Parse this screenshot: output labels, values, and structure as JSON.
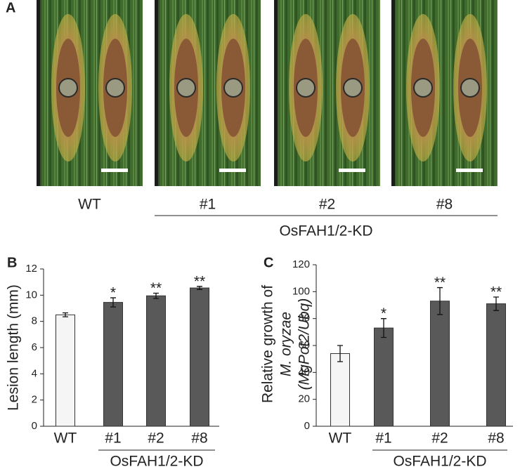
{
  "panel_a": {
    "label": "A",
    "samples": [
      "WT",
      "#1",
      "#2",
      "#8"
    ],
    "group_label": "OsFAH1/2-KD"
  },
  "chart_data": [
    {
      "type": "bar",
      "panel_label": "B",
      "y_label": [
        "Lesion length (mm)"
      ],
      "categories": [
        "WT",
        "#1",
        "#2",
        "#8"
      ],
      "values": [
        8.5,
        9.45,
        9.95,
        10.55
      ],
      "errors": [
        0.15,
        0.35,
        0.2,
        0.12
      ],
      "colors": [
        "#f5f5f5",
        "#595959",
        "#595959",
        "#595959"
      ],
      "significance": [
        null,
        "*",
        "**",
        "**"
      ],
      "group_label": "OsFAH1/2-KD",
      "ylim": [
        0,
        12
      ],
      "yticks": [
        0,
        2,
        4,
        6,
        8,
        10,
        12
      ]
    },
    {
      "type": "bar",
      "panel_label": "C",
      "y_label": [
        "Relative growth of",
        "M. oryzae",
        "(MgPot2/Ubq)"
      ],
      "categories": [
        "WT",
        "#1",
        "#2",
        "#8"
      ],
      "values": [
        54,
        73,
        93,
        91
      ],
      "errors": [
        6,
        7,
        10,
        5
      ],
      "colors": [
        "#f5f5f5",
        "#595959",
        "#595959",
        "#595959"
      ],
      "significance": [
        null,
        "*",
        "**",
        "**"
      ],
      "group_label": "OsFAH1/2-KD",
      "ylim": [
        0,
        120
      ],
      "yticks": [
        0,
        20,
        40,
        60,
        80,
        100,
        120
      ]
    }
  ]
}
